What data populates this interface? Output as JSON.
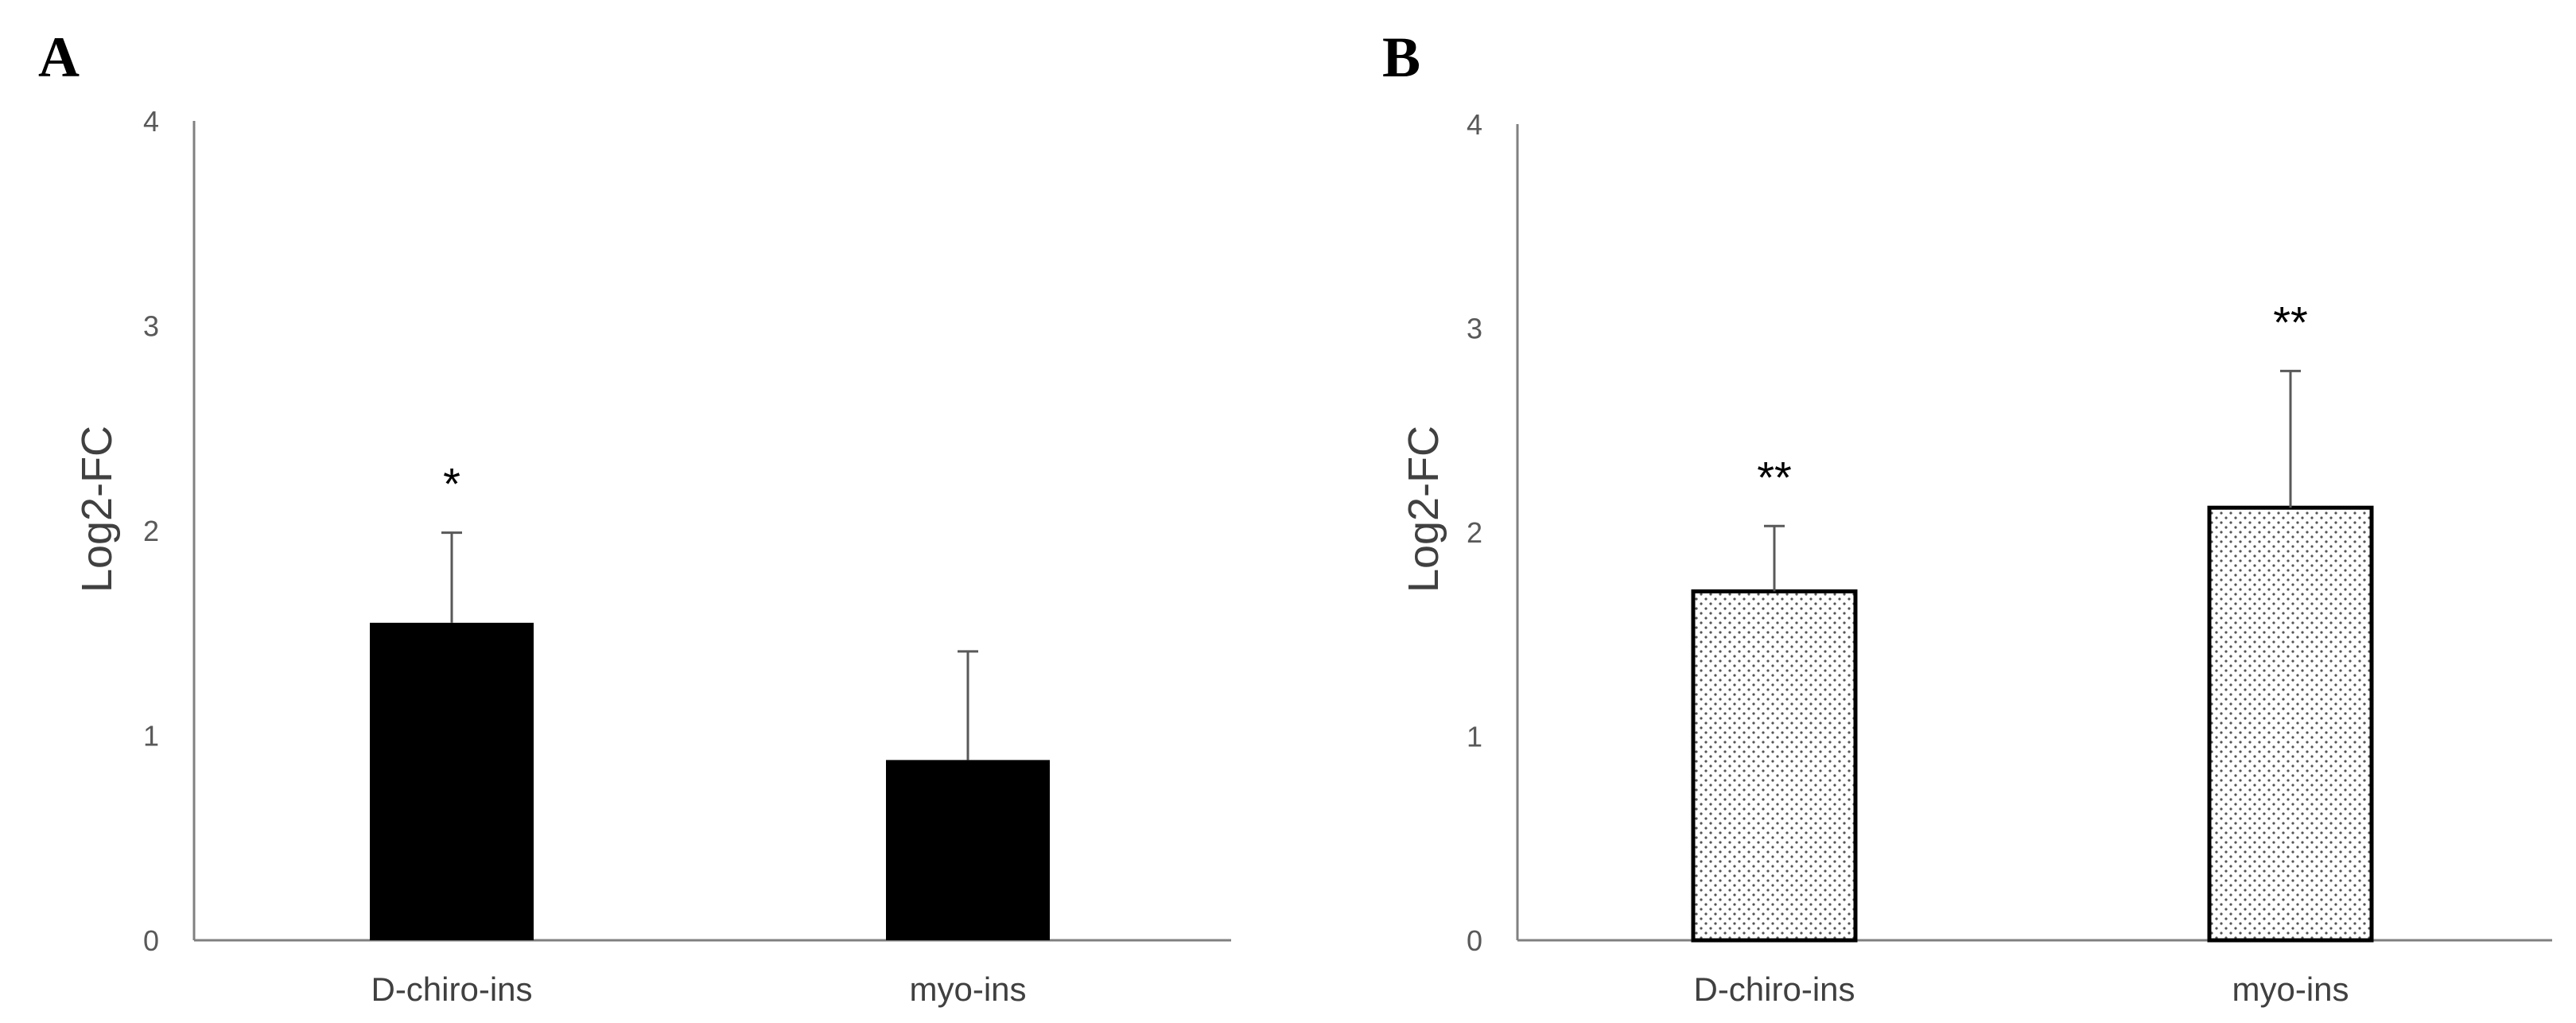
{
  "chart_data": [
    {
      "panel": "A",
      "type": "bar",
      "ylabel": "Log2-FC",
      "ylim": [
        0,
        4
      ],
      "yticks": [
        "0",
        "1",
        "2",
        "3",
        "4"
      ],
      "categories": [
        "D-chiro-ins",
        "myo-ins"
      ],
      "values": [
        1.55,
        0.88
      ],
      "errors": [
        0.44,
        0.53
      ],
      "significance": [
        "*",
        ""
      ],
      "fill": "solid",
      "color": "#000000"
    },
    {
      "panel": "B",
      "type": "bar",
      "ylabel": "Log2-FC",
      "ylim": [
        0,
        4
      ],
      "yticks": [
        "0",
        "1",
        "2",
        "3",
        "4"
      ],
      "categories": [
        "D-chiro-ins",
        "myo-ins"
      ],
      "values": [
        1.71,
        2.12
      ],
      "errors": [
        0.32,
        0.67
      ],
      "significance": [
        "**",
        "**"
      ],
      "fill": "dotted",
      "color": "#000000"
    }
  ]
}
